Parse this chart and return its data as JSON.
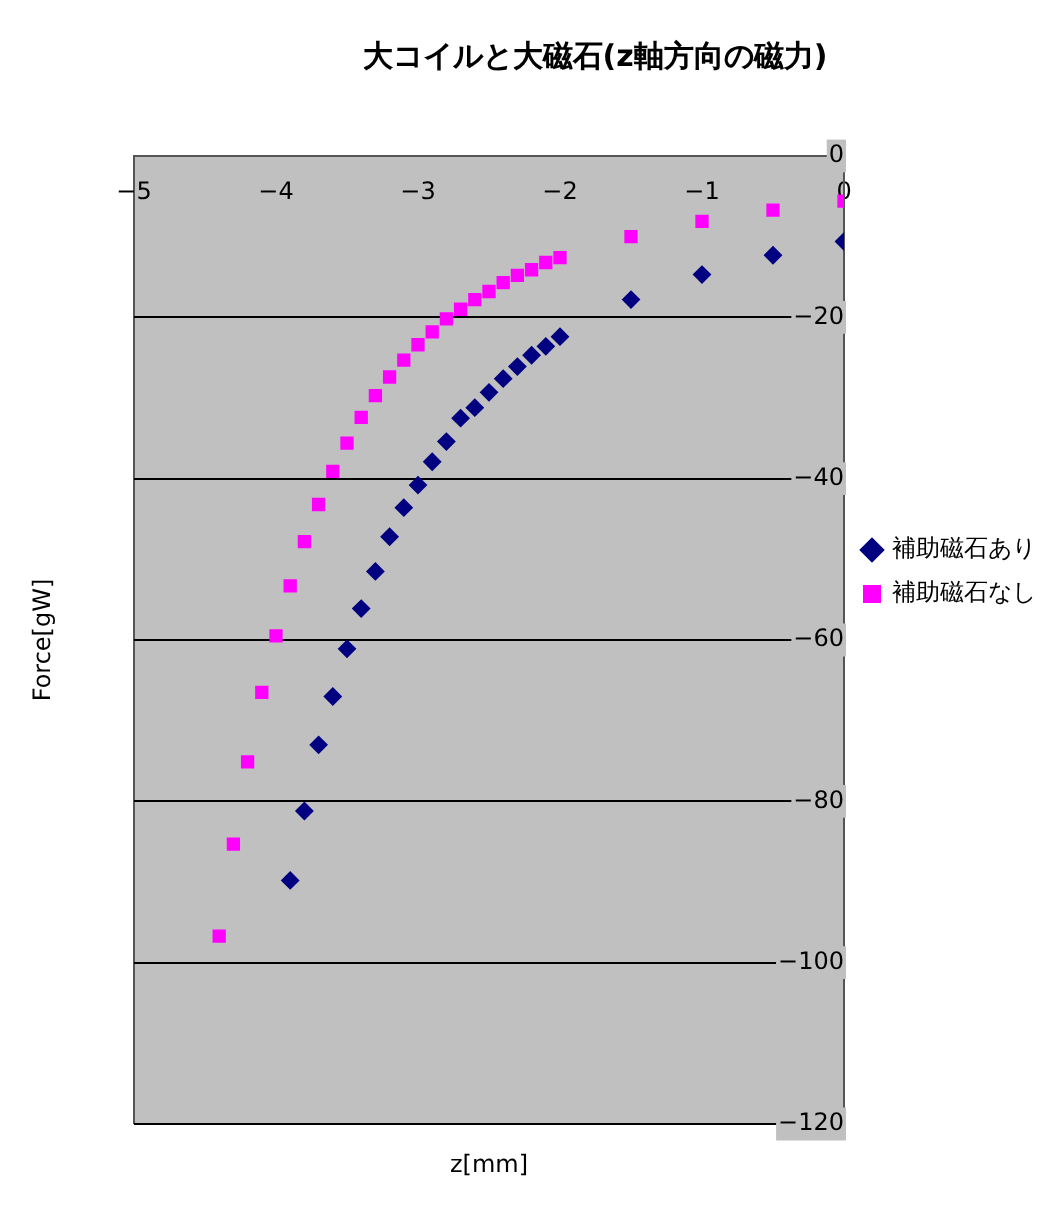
{
  "chart_data": {
    "type": "scatter",
    "title": "大コイルと大磁石(z軸方向の磁力)",
    "xlabel": "z[mm]",
    "ylabel": "Force[gW]",
    "xlim": [
      -5,
      0
    ],
    "xticks": [
      -5,
      -4,
      -3,
      -2,
      -1,
      0
    ],
    "ylim": [
      -120,
      0
    ],
    "yticks": [
      -120,
      -100,
      -80,
      -60,
      -40,
      -20,
      0
    ],
    "grid": "y",
    "legend": "right",
    "series": [
      {
        "name": "補助磁石あり",
        "color": "#000080",
        "marker": "diamond",
        "x": [
          0,
          -0.5,
          -1,
          -1.5,
          -2,
          -2.1,
          -2.2,
          -2.3,
          -2.4,
          -2.5,
          -2.6,
          -2.7,
          -2.8,
          -2.9,
          -3.0,
          -3.1,
          -3.2,
          -3.3,
          -3.4,
          -3.5,
          -3.6,
          -3.7,
          -3.8,
          -3.9
        ],
        "values": [
          -10.6,
          -12.3,
          -14.7,
          -17.8,
          -22.4,
          -23.6,
          -24.7,
          -26.1,
          -27.6,
          -29.3,
          -31.2,
          -32.5,
          -35.4,
          -37.9,
          -40.8,
          -43.6,
          -47.2,
          -51.5,
          -56.1,
          -61.1,
          -67.0,
          -73.0,
          -81.2,
          -89.8
        ]
      },
      {
        "name": "補助磁石なし",
        "color": "#ff00ff",
        "marker": "square",
        "x": [
          0,
          -0.5,
          -1,
          -1.5,
          -2,
          -2.1,
          -2.2,
          -2.3,
          -2.4,
          -2.5,
          -2.6,
          -2.7,
          -2.8,
          -2.9,
          -3.0,
          -3.1,
          -3.2,
          -3.3,
          -3.4,
          -3.5,
          -3.6,
          -3.7,
          -3.8,
          -3.9,
          -4.0,
          -4.1,
          -4.2,
          -4.3,
          -4.4
        ],
        "values": [
          -5.6,
          -6.7,
          -8.1,
          -10.0,
          -12.6,
          -13.2,
          -14.1,
          -14.8,
          -15.7,
          -16.8,
          -17.8,
          -19.0,
          -20.2,
          -21.8,
          -23.4,
          -25.3,
          -27.4,
          -29.7,
          -32.4,
          -35.6,
          -39.1,
          -43.2,
          -47.8,
          -53.3,
          -59.5,
          -66.5,
          -75.1,
          -85.3,
          -96.7
        ]
      }
    ]
  }
}
